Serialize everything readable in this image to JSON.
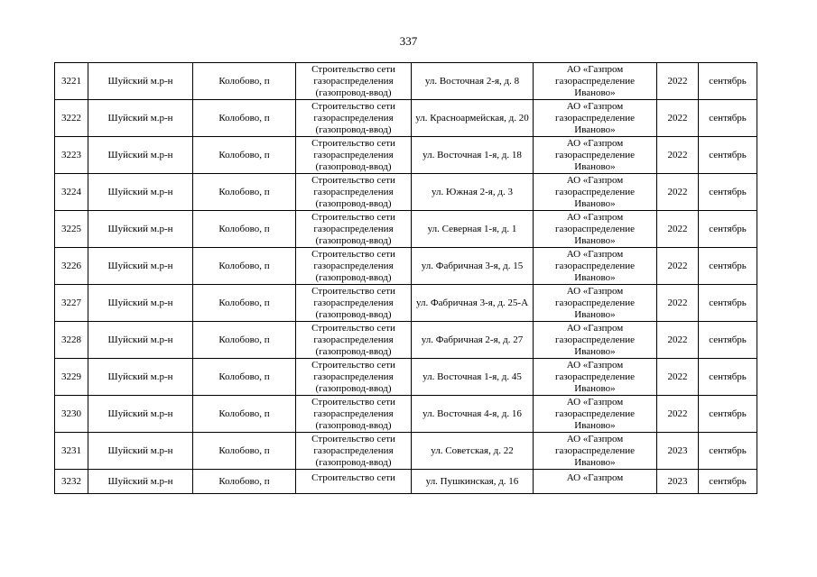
{
  "page_number": "337",
  "rows": [
    {
      "no": "3221",
      "district": "Шуйский м.р-н",
      "settlement": "Колобово, п",
      "work": "Строительство сети газораспределения (газопровод-ввод)",
      "address": "ул. Восточная 2-я, д. 8",
      "org": "АО «Газпром газораспределение Иваново»",
      "year": "2022",
      "month": "сентябрь"
    },
    {
      "no": "3222",
      "district": "Шуйский м.р-н",
      "settlement": "Колобово, п",
      "work": "Строительство сети газораспределения (газопровод-ввод)",
      "address": "ул. Красноармейская, д. 20",
      "org": "АО «Газпром газораспределение Иваново»",
      "year": "2022",
      "month": "сентябрь"
    },
    {
      "no": "3223",
      "district": "Шуйский м.р-н",
      "settlement": "Колобово, п",
      "work": "Строительство сети газораспределения (газопровод-ввод)",
      "address": "ул. Восточная 1-я, д. 18",
      "org": "АО «Газпром газораспределение Иваново»",
      "year": "2022",
      "month": "сентябрь"
    },
    {
      "no": "3224",
      "district": "Шуйский м.р-н",
      "settlement": "Колобово, п",
      "work": "Строительство сети газораспределения (газопровод-ввод)",
      "address": "ул. Южная 2-я, д. 3",
      "org": "АО «Газпром газораспределение Иваново»",
      "year": "2022",
      "month": "сентябрь"
    },
    {
      "no": "3225",
      "district": "Шуйский м.р-н",
      "settlement": "Колобово, п",
      "work": "Строительство сети газораспределения (газопровод-ввод)",
      "address": "ул. Северная 1-я, д. 1",
      "org": "АО «Газпром газораспределение Иваново»",
      "year": "2022",
      "month": "сентябрь"
    },
    {
      "no": "3226",
      "district": "Шуйский м.р-н",
      "settlement": "Колобово, п",
      "work": "Строительство сети газораспределения (газопровод-ввод)",
      "address": "ул. Фабричная 3-я, д. 15",
      "org": "АО «Газпром газораспределение Иваново»",
      "year": "2022",
      "month": "сентябрь"
    },
    {
      "no": "3227",
      "district": "Шуйский м.р-н",
      "settlement": "Колобово, п",
      "work": "Строительство сети газораспределения (газопровод-ввод)",
      "address": "ул. Фабричная 3-я, д. 25-А",
      "org": "АО «Газпром газораспределение Иваново»",
      "year": "2022",
      "month": "сентябрь"
    },
    {
      "no": "3228",
      "district": "Шуйский м.р-н",
      "settlement": "Колобово, п",
      "work": "Строительство сети газораспределения (газопровод-ввод)",
      "address": "ул. Фабричная 2-я, д. 27",
      "org": "АО «Газпром газораспределение Иваново»",
      "year": "2022",
      "month": "сентябрь"
    },
    {
      "no": "3229",
      "district": "Шуйский м.р-н",
      "settlement": "Колобово, п",
      "work": "Строительство сети газораспределения (газопровод-ввод)",
      "address": "ул. Восточная 1-я, д. 45",
      "org": "АО «Газпром газораспределение Иваново»",
      "year": "2022",
      "month": "сентябрь"
    },
    {
      "no": "3230",
      "district": "Шуйский м.р-н",
      "settlement": "Колобово, п",
      "work": "Строительство сети газораспределения (газопровод-ввод)",
      "address": "ул. Восточная 4-я, д. 16",
      "org": "АО «Газпром газораспределение Иваново»",
      "year": "2022",
      "month": "сентябрь"
    },
    {
      "no": "3231",
      "district": "Шуйский м.р-н",
      "settlement": "Колобово, п",
      "work": "Строительство сети газораспределения (газопровод-ввод)",
      "address": "ул. Советская, д. 22",
      "org": "АО «Газпром газораспределение Иваново»",
      "year": "2023",
      "month": "сентябрь"
    },
    {
      "no": "3232",
      "district": "Шуйский м.р-н",
      "settlement": "Колобово, п",
      "work": "Строительство сети",
      "address": "ул. Пушкинская, д. 16",
      "org": "АО «Газпром",
      "year": "2023",
      "month": "сентябрь"
    }
  ]
}
